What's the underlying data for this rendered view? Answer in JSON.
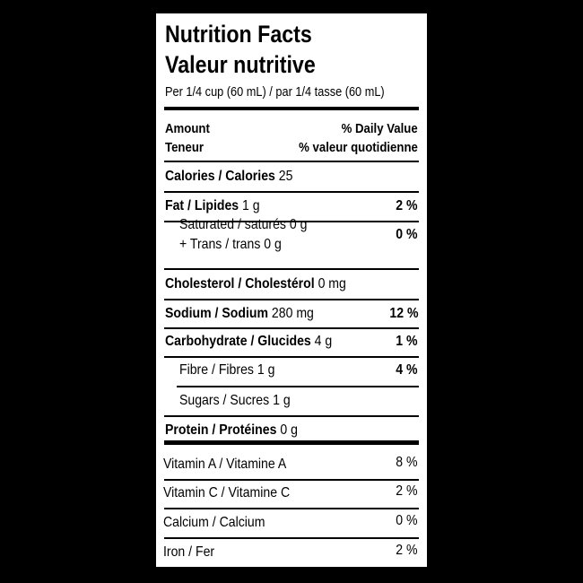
{
  "title_en": "Nutrition Facts",
  "title_fr": "Valeur nutritive",
  "serving": "Per 1/4 cup (60 mL) / par 1/4 tasse (60 mL)",
  "header": {
    "amount": "Amount",
    "amount_fr": "Teneur",
    "dv": "% Daily Value",
    "dv_fr": "% valeur quotidienne"
  },
  "rows": [
    {
      "name": "Calories / Calories",
      "amount": "25"
    },
    {
      "name": "Fat / Lipides",
      "amount": "1 g",
      "dv": "2 %"
    },
    {
      "name": "Saturated / saturés 0 g",
      "line2": "+ Trans / trans 0 g",
      "dv": "0 %"
    },
    {
      "name": "Cholesterol / Cholestérol",
      "amount": "0 mg"
    },
    {
      "name": "Sodium / Sodium",
      "amount": "280 mg",
      "dv": "12 %"
    },
    {
      "name": "Carbohydrate / Glucides",
      "amount": "4 g",
      "dv": "1 %"
    },
    {
      "name": "Fibre / Fibres 1 g",
      "dv": "4 %"
    },
    {
      "name": "Sugars / Sucres 1 g"
    },
    {
      "name": "Protein / Protéines",
      "amount": "0 g"
    }
  ],
  "vitamins": [
    {
      "name": "Vitamin A / Vitamine A",
      "dv": "8 %"
    },
    {
      "name": "Vitamin C / Vitamine C",
      "dv": "2 %"
    },
    {
      "name": "Calcium / Calcium",
      "dv": "0 %"
    },
    {
      "name": "Iron / Fer",
      "dv": "2 %"
    }
  ]
}
